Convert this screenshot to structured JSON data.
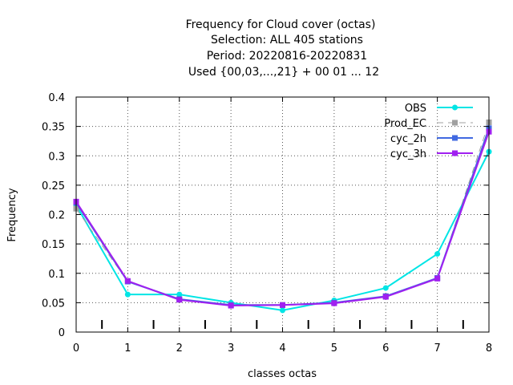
{
  "chart_data": {
    "type": "line",
    "title_lines": [
      "Frequency  for Cloud cover (octas)",
      "Selection: ALL    405 stations",
      "Period: 20220816-20220831",
      "Used {00,03,...,21} + 00 01 ... 12"
    ],
    "xlabel": "classes octas",
    "ylabel": "Frequency",
    "x": [
      0,
      1,
      2,
      3,
      4,
      5,
      6,
      7,
      8
    ],
    "xlim": [
      0,
      8
    ],
    "ylim": [
      0,
      0.4
    ],
    "xticks": [
      "0",
      "1",
      "2",
      "3",
      "4",
      "5",
      "6",
      "7",
      "8"
    ],
    "yticks": [
      0,
      0.05,
      0.1,
      0.15,
      0.2,
      0.25,
      0.3,
      0.35,
      0.4
    ],
    "ytick_labels": [
      "0",
      "0.05",
      "0.1",
      "0.15",
      "0.2",
      "0.25",
      "0.3",
      "0.35",
      "0.4"
    ],
    "minor_x_ticks": [
      0.5,
      1.5,
      2.5,
      3.5,
      4.5,
      5.5,
      6.5,
      7.5
    ],
    "grid": true,
    "legend_position": "top-right",
    "series": [
      {
        "name": "OBS",
        "color": "#00e5e5",
        "dashed": false,
        "values": [
          0.216,
          0.064,
          0.064,
          0.05,
          0.037,
          0.054,
          0.075,
          0.133,
          0.307
        ]
      },
      {
        "name": "Prod_EC",
        "color": "#a0a0a0",
        "dashed": true,
        "values": [
          0.21,
          0.086,
          0.056,
          0.046,
          0.046,
          0.05,
          0.061,
          0.092,
          0.357
        ]
      },
      {
        "name": "cyc_2h",
        "color": "#4169e1",
        "dashed": false,
        "values": [
          0.22,
          0.086,
          0.056,
          0.046,
          0.046,
          0.05,
          0.061,
          0.092,
          0.347
        ]
      },
      {
        "name": "cyc_3h",
        "color": "#a020f0",
        "dashed": false,
        "values": [
          0.222,
          0.087,
          0.055,
          0.045,
          0.046,
          0.049,
          0.06,
          0.091,
          0.341
        ]
      }
    ]
  }
}
